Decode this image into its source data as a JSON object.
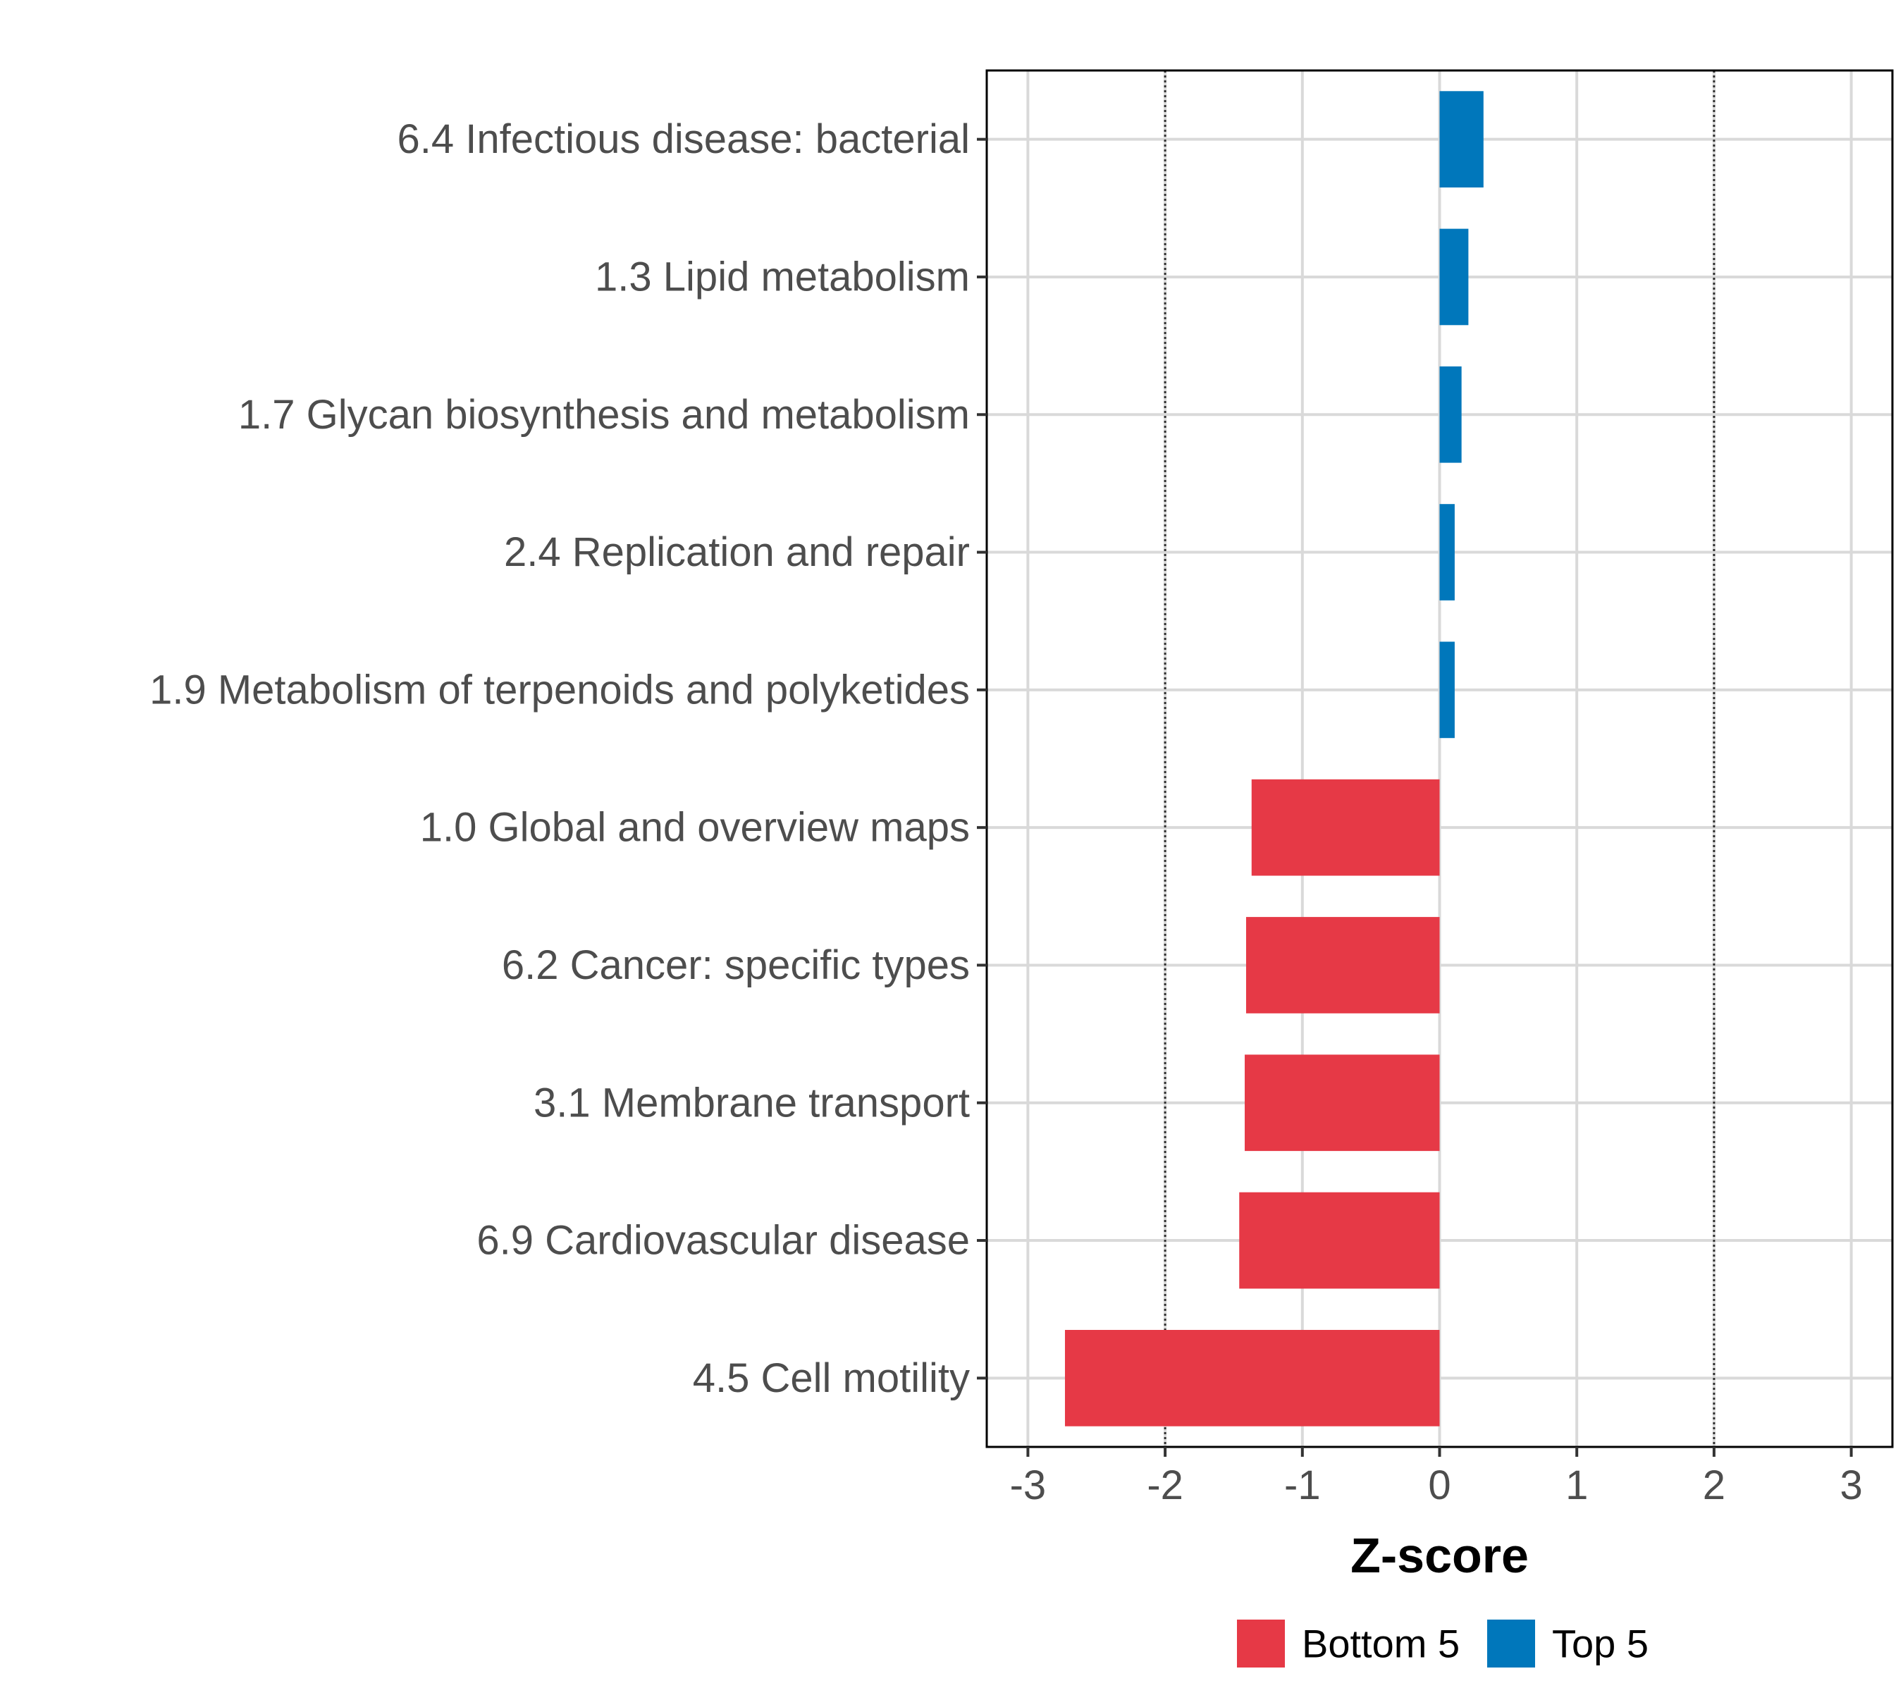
{
  "chart_data": {
    "type": "bar",
    "orientation": "horizontal",
    "title": "",
    "xlabel": "Z-score",
    "ylabel": "",
    "xlim": [
      -3.3,
      3.3
    ],
    "xticks": [
      -3,
      -2,
      -1,
      0,
      1,
      2,
      3
    ],
    "xtick_labels": [
      "-3",
      "-2",
      "-1",
      "0",
      "1",
      "2",
      "3"
    ],
    "reference_lines": [
      -2,
      2
    ],
    "grid": true,
    "categories": [
      "6.4 Infectious disease: bacterial",
      "1.3 Lipid metabolism",
      "1.7 Glycan biosynthesis and metabolism",
      "2.4 Replication and repair",
      "1.9 Metabolism of terpenoids and polyketides",
      "1.0 Global and overview maps",
      "6.2 Cancer: specific types",
      "3.1 Membrane transport",
      "6.9 Cardiovascular disease",
      "4.5 Cell motility"
    ],
    "values": [
      0.32,
      0.21,
      0.16,
      0.11,
      0.11,
      -1.37,
      -1.41,
      -1.42,
      -1.46,
      -2.73
    ],
    "groups": [
      "Top 5",
      "Top 5",
      "Top 5",
      "Top 5",
      "Top 5",
      "Bottom 5",
      "Bottom 5",
      "Bottom 5",
      "Bottom 5",
      "Bottom 5"
    ],
    "legend": {
      "placement": "bottom",
      "entries": [
        {
          "label": "Bottom 5",
          "color": "#e63946"
        },
        {
          "label": "Top 5",
          "color": "#0077bb"
        }
      ]
    }
  },
  "colors": {
    "bottom": "#e63946",
    "top": "#0077bb",
    "grid": "#d9d9d9",
    "axis_text": "#4d4d4d"
  }
}
